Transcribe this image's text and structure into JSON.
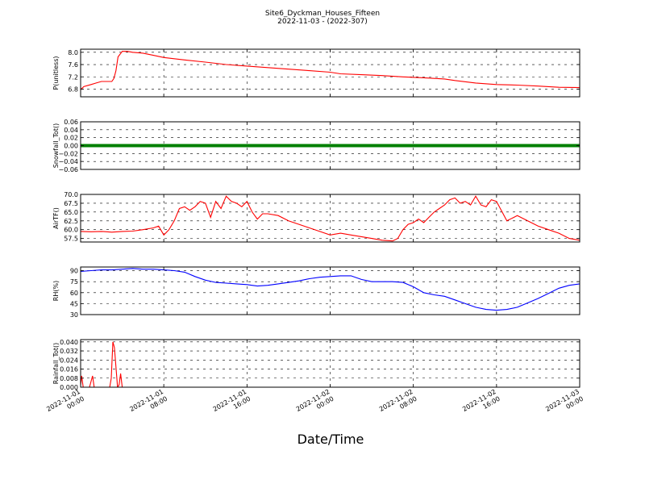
{
  "figure": {
    "title": "Site6_Dyckman_Houses_Fifteen",
    "subtitle": "2022-11-03 - (2022-307)",
    "xlabel": "Date/Time",
    "xtick_labels": [
      [
        "2022-11-01",
        "00:00"
      ],
      [
        "2022-11-01",
        "08:00"
      ],
      [
        "2022-11-01",
        "16:00"
      ],
      [
        "2022-11-02",
        "00:00"
      ],
      [
        "2022-11-02",
        "08:00"
      ],
      [
        "2022-11-02",
        "16:00"
      ],
      [
        "2022-11-03",
        "00:00"
      ]
    ]
  },
  "chart_data": [
    {
      "type": "line",
      "ylabel": "P(unitless)",
      "ylim": [
        6.55,
        8.1
      ],
      "yticks": [
        6.8,
        7.2,
        7.6,
        8.0
      ],
      "ytick_labels": [
        "6.8",
        "7.2",
        "7.6",
        "8.0"
      ],
      "xlim": [
        0,
        48
      ],
      "grid": true,
      "color": "#ff0000",
      "x": [
        0,
        0.3,
        1,
        1.5,
        2,
        2.5,
        3,
        3.2,
        3.4,
        3.6,
        4,
        4.5,
        5,
        6,
        7,
        8,
        10,
        12,
        14,
        16,
        18,
        20,
        22,
        24,
        25,
        27,
        29,
        31,
        33,
        35,
        36,
        38,
        40,
        42,
        44,
        46,
        48
      ],
      "y": [
        6.78,
        6.88,
        6.95,
        7.0,
        7.05,
        7.05,
        7.05,
        7.15,
        7.4,
        7.85,
        8.03,
        8.03,
        8.0,
        7.97,
        7.9,
        7.83,
        7.75,
        7.68,
        7.6,
        7.55,
        7.5,
        7.45,
        7.4,
        7.35,
        7.3,
        7.27,
        7.24,
        7.2,
        7.17,
        7.13,
        7.08,
        7.0,
        6.95,
        6.93,
        6.9,
        6.86,
        6.85
      ]
    },
    {
      "type": "scatter",
      "ylabel": "Snowfall_Tot()",
      "ylim": [
        -0.06,
        0.06
      ],
      "yticks": [
        -0.06,
        -0.04,
        -0.02,
        0.0,
        0.02,
        0.04,
        0.06
      ],
      "ytick_labels": [
        "−0.06",
        "−0.04",
        "−0.02",
        "0.00",
        "0.02",
        "0.04",
        "0.06"
      ],
      "xlim": [
        0,
        48
      ],
      "grid": true,
      "color": "#008000",
      "x": [
        0,
        48
      ],
      "y": [
        0,
        0
      ]
    },
    {
      "type": "line",
      "ylabel": "AirTF()",
      "ylim": [
        56.5,
        70
      ],
      "yticks": [
        57.5,
        60.0,
        62.5,
        65.0,
        67.5,
        70.0
      ],
      "ytick_labels": [
        "57.5",
        "60.0",
        "62.5",
        "65.0",
        "67.5",
        "70.0"
      ],
      "xlim": [
        0,
        48
      ],
      "grid": true,
      "color": "#ff0000",
      "x": [
        0,
        1,
        2,
        3,
        4,
        5,
        6,
        7,
        7.5,
        8,
        8.5,
        9,
        9.5,
        10,
        10.5,
        11,
        11.5,
        12,
        12.5,
        13,
        13.5,
        14,
        14.5,
        15,
        15.5,
        16,
        16.5,
        17,
        17.5,
        18,
        19,
        20,
        21,
        22,
        23,
        24,
        25,
        26,
        27,
        28,
        29,
        30,
        30.5,
        31,
        31.5,
        32,
        32.5,
        33,
        33.5,
        34,
        34.5,
        35,
        35.5,
        36,
        36.5,
        37,
        37.5,
        38,
        38.5,
        39,
        39.5,
        40,
        41,
        42,
        43,
        44,
        45,
        46,
        47,
        48
      ],
      "y": [
        59.5,
        59.4,
        59.5,
        59.3,
        59.5,
        59.6,
        60.0,
        60.5,
        61.0,
        58.5,
        60.0,
        62.5,
        66.0,
        66.5,
        65.5,
        66.5,
        68.0,
        67.5,
        63.5,
        68.0,
        66.0,
        69.5,
        68.0,
        67.5,
        66.5,
        68.0,
        65.0,
        63.0,
        64.5,
        64.5,
        64.0,
        62.5,
        61.5,
        60.5,
        59.5,
        58.5,
        59.0,
        58.5,
        58.0,
        57.5,
        57.0,
        56.8,
        57.5,
        60.0,
        61.5,
        62.0,
        63.0,
        62.0,
        63.5,
        65.0,
        66.0,
        67.0,
        68.5,
        69.0,
        67.5,
        68.0,
        67.0,
        69.5,
        67.0,
        66.5,
        68.5,
        68.0,
        62.5,
        64.0,
        62.5,
        61.0,
        60.0,
        59.0,
        57.5,
        57.0
      ]
    },
    {
      "type": "line",
      "ylabel": "RH(%)",
      "ylim": [
        30,
        95
      ],
      "yticks": [
        30,
        45,
        60,
        75,
        90
      ],
      "ytick_labels": [
        "30",
        "45",
        "60",
        "75",
        "90"
      ],
      "xlim": [
        0,
        48
      ],
      "grid": true,
      "color": "#0000ff",
      "x": [
        0,
        1,
        2,
        3,
        4,
        5,
        6,
        7,
        8,
        9,
        10,
        11,
        12,
        13,
        14,
        15,
        16,
        17,
        18,
        19,
        20,
        21,
        22,
        23,
        24,
        25,
        26,
        27,
        28,
        29,
        30,
        31,
        32,
        33,
        34,
        35,
        36,
        37,
        38,
        39,
        40,
        41,
        42,
        43,
        44,
        45,
        46,
        47,
        48
      ],
      "y": [
        89,
        90,
        91,
        91,
        92,
        93,
        92,
        92,
        91,
        90,
        88,
        82,
        77,
        74,
        73,
        72,
        71,
        69,
        70,
        72,
        74,
        76,
        79,
        81,
        82,
        83,
        83,
        78,
        75,
        75,
        75,
        74,
        68,
        60,
        57,
        55,
        50,
        45,
        40,
        37,
        36,
        37,
        40,
        46,
        52,
        59,
        66,
        70,
        72
      ]
    },
    {
      "type": "line",
      "ylabel": "Rainfall_Tot()",
      "ylim": [
        0.0,
        0.042
      ],
      "yticks": [
        0.0,
        0.008,
        0.016,
        0.024,
        0.032,
        0.04
      ],
      "ytick_labels": [
        "0.000",
        "0.008",
        "0.016",
        "0.024",
        "0.032",
        "0.040"
      ],
      "xlim": [
        0,
        48
      ],
      "grid": true,
      "color": "#ff0000",
      "x": [
        0,
        0.1,
        0.25,
        0.4,
        0.55,
        0.7,
        0.85,
        1.0,
        1.15,
        1.3,
        1.45,
        1.6,
        1.75,
        1.9,
        2.05,
        2.2,
        2.35,
        2.5,
        2.65,
        2.8,
        2.95,
        3.1,
        3.25,
        3.4,
        3.55,
        3.7,
        3.85,
        4.0,
        4.15,
        4.3,
        4.45,
        48
      ],
      "y": [
        0.002,
        0.01,
        0.0,
        0.0,
        0.0,
        0.0,
        0.0,
        0.005,
        0.01,
        0.0,
        0.0,
        0.0,
        0.0,
        0.0,
        0.0,
        0.0,
        0.0,
        0.0,
        0.0,
        0.0,
        0.008,
        0.04,
        0.035,
        0.018,
        0.0,
        0.002,
        0.012,
        0.0,
        0.0,
        0.0,
        0.0,
        0.0
      ]
    }
  ]
}
